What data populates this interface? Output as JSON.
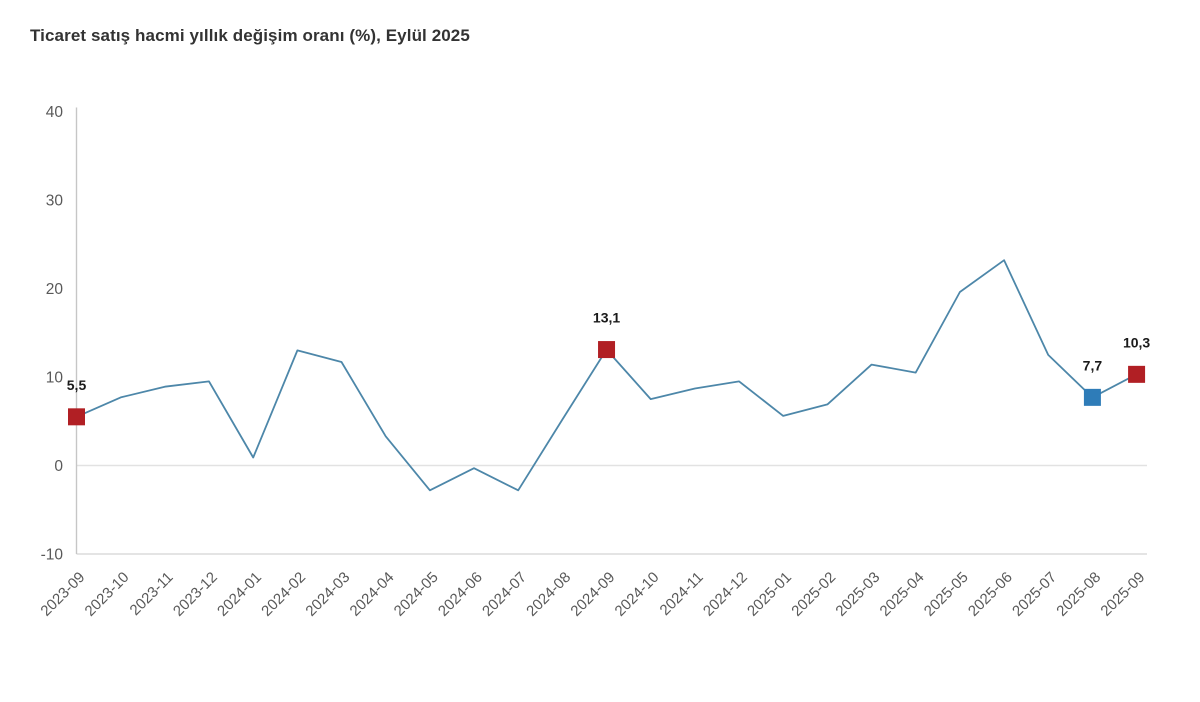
{
  "title": "Ticaret satış hacmi yıllık değişim oranı (%), Eylül 2025",
  "chart_data": {
    "type": "line",
    "title": "Ticaret satış hacmi yıllık değişim oranı (%), Eylül 2025",
    "x": [
      "2023-09",
      "2023-10",
      "2023-11",
      "2023-12",
      "2024-01",
      "2024-02",
      "2024-03",
      "2024-04",
      "2024-05",
      "2024-06",
      "2024-07",
      "2024-08",
      "2024-09",
      "2024-10",
      "2024-11",
      "2024-12",
      "2025-01",
      "2025-02",
      "2025-03",
      "2025-04",
      "2025-05",
      "2025-06",
      "2025-07",
      "2025-08",
      "2025-09"
    ],
    "values": [
      5.5,
      7.7,
      8.9,
      9.5,
      0.9,
      13.0,
      11.7,
      3.3,
      -2.8,
      -0.3,
      -2.8,
      5.2,
      13.1,
      7.5,
      8.7,
      9.5,
      5.6,
      6.9,
      11.4,
      10.5,
      19.6,
      23.2,
      12.5,
      7.7,
      10.3
    ],
    "ylim": [
      -10,
      40
    ],
    "yticks": [
      "40",
      "30",
      "20",
      "10",
      "0",
      "-10"
    ],
    "ytick_values": [
      40,
      30,
      20,
      10,
      0,
      -10
    ],
    "grid": "horizontal line at 0 and at -10 only, no vertical grid",
    "legend": "none",
    "xlabel": "",
    "ylabel": "",
    "markers": [
      {
        "x": "2023-09",
        "value": 5.5,
        "label": "5,5",
        "color": "#b11f24"
      },
      {
        "x": "2024-09",
        "value": 13.1,
        "label": "13,1",
        "color": "#b11f24"
      },
      {
        "x": "2025-08",
        "value": 7.7,
        "label": "7,7",
        "color": "#2e7cb8"
      },
      {
        "x": "2025-09",
        "value": 10.3,
        "label": "10,3",
        "color": "#b11f24"
      }
    ],
    "colors": {
      "line": "#4d87a9",
      "axis": "#c6c6c6",
      "zero_gridline": "#e2e2e2",
      "bottom_line": "#dcdcdc",
      "tick_text": "#595959",
      "marker_red": "#b11f24",
      "marker_blue": "#2e7cb8",
      "title_text": "#333333"
    }
  }
}
